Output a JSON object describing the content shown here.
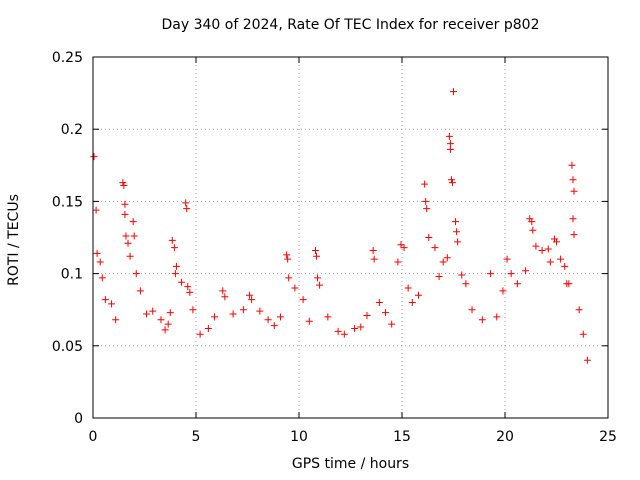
{
  "chart_data": {
    "type": "scatter",
    "title": "Day 340 of 2024, Rate Of TEC Index for receiver p802",
    "xlabel": "GPS time / hours",
    "ylabel": "ROTI / TECUs",
    "xlim": [
      0,
      25
    ],
    "ylim": [
      0,
      0.25
    ],
    "xticks": [
      "0",
      "5",
      "10",
      "15",
      "20",
      "25"
    ],
    "yticks": [
      "0",
      "0.05",
      "0.1",
      "0.15",
      "0.2",
      "0.25"
    ],
    "grid": true,
    "marker": "+",
    "color": "#ff0000",
    "series": [
      {
        "name": "",
        "points": [
          [
            0.05,
            0.181
          ],
          [
            0.15,
            0.144
          ],
          [
            0.2,
            0.114
          ],
          [
            0.35,
            0.108
          ],
          [
            0.45,
            0.097
          ],
          [
            0.6,
            0.082
          ],
          [
            0.9,
            0.079
          ],
          [
            1.1,
            0.068
          ],
          [
            1.45,
            0.163
          ],
          [
            1.5,
            0.161
          ],
          [
            1.55,
            0.148
          ],
          [
            1.55,
            0.141
          ],
          [
            1.6,
            0.126
          ],
          [
            1.7,
            0.121
          ],
          [
            1.8,
            0.112
          ],
          [
            1.95,
            0.136
          ],
          [
            2.0,
            0.126
          ],
          [
            2.1,
            0.1
          ],
          [
            2.3,
            0.088
          ],
          [
            2.6,
            0.072
          ],
          [
            2.9,
            0.074
          ],
          [
            3.3,
            0.068
          ],
          [
            3.5,
            0.061
          ],
          [
            3.65,
            0.065
          ],
          [
            3.75,
            0.073
          ],
          [
            3.85,
            0.123
          ],
          [
            3.95,
            0.118
          ],
          [
            4.0,
            0.1
          ],
          [
            4.05,
            0.105
          ],
          [
            4.3,
            0.094
          ],
          [
            4.5,
            0.149
          ],
          [
            4.55,
            0.145
          ],
          [
            4.6,
            0.091
          ],
          [
            4.7,
            0.087
          ],
          [
            4.85,
            0.075
          ],
          [
            5.2,
            0.058
          ],
          [
            5.6,
            0.062
          ],
          [
            5.9,
            0.07
          ],
          [
            6.3,
            0.088
          ],
          [
            6.4,
            0.084
          ],
          [
            6.8,
            0.072
          ],
          [
            7.3,
            0.075
          ],
          [
            7.6,
            0.085
          ],
          [
            7.7,
            0.082
          ],
          [
            8.1,
            0.074
          ],
          [
            8.5,
            0.068
          ],
          [
            8.8,
            0.064
          ],
          [
            9.1,
            0.07
          ],
          [
            9.4,
            0.113
          ],
          [
            9.45,
            0.11
          ],
          [
            9.5,
            0.097
          ],
          [
            9.8,
            0.09
          ],
          [
            10.2,
            0.082
          ],
          [
            10.5,
            0.067
          ],
          [
            10.8,
            0.116
          ],
          [
            10.85,
            0.112
          ],
          [
            10.9,
            0.097
          ],
          [
            11.0,
            0.092
          ],
          [
            11.4,
            0.07
          ],
          [
            11.9,
            0.06
          ],
          [
            12.2,
            0.058
          ],
          [
            12.7,
            0.062
          ],
          [
            13.0,
            0.063
          ],
          [
            13.3,
            0.071
          ],
          [
            13.6,
            0.116
          ],
          [
            13.65,
            0.11
          ],
          [
            13.9,
            0.08
          ],
          [
            14.2,
            0.073
          ],
          [
            14.5,
            0.065
          ],
          [
            14.8,
            0.108
          ],
          [
            14.95,
            0.12
          ],
          [
            15.1,
            0.118
          ],
          [
            15.3,
            0.09
          ],
          [
            15.5,
            0.08
          ],
          [
            15.8,
            0.085
          ],
          [
            16.1,
            0.162
          ],
          [
            16.15,
            0.15
          ],
          [
            16.2,
            0.145
          ],
          [
            16.3,
            0.125
          ],
          [
            16.6,
            0.118
          ],
          [
            16.8,
            0.098
          ],
          [
            17.0,
            0.108
          ],
          [
            17.2,
            0.111
          ],
          [
            17.3,
            0.195
          ],
          [
            17.35,
            0.19
          ],
          [
            17.35,
            0.186
          ],
          [
            17.4,
            0.165
          ],
          [
            17.45,
            0.163
          ],
          [
            17.5,
            0.226
          ],
          [
            17.6,
            0.136
          ],
          [
            17.65,
            0.129
          ],
          [
            17.7,
            0.122
          ],
          [
            17.9,
            0.099
          ],
          [
            18.1,
            0.093
          ],
          [
            18.4,
            0.075
          ],
          [
            18.9,
            0.068
          ],
          [
            19.3,
            0.1
          ],
          [
            19.6,
            0.07
          ],
          [
            19.9,
            0.088
          ],
          [
            20.1,
            0.11
          ],
          [
            20.3,
            0.1
          ],
          [
            20.6,
            0.093
          ],
          [
            21.0,
            0.102
          ],
          [
            21.2,
            0.138
          ],
          [
            21.3,
            0.136
          ],
          [
            21.35,
            0.13
          ],
          [
            21.5,
            0.119
          ],
          [
            21.8,
            0.116
          ],
          [
            22.1,
            0.117
          ],
          [
            22.2,
            0.108
          ],
          [
            22.4,
            0.124
          ],
          [
            22.5,
            0.122
          ],
          [
            22.7,
            0.11
          ],
          [
            22.9,
            0.105
          ],
          [
            23.0,
            0.093
          ],
          [
            23.1,
            0.093
          ],
          [
            23.25,
            0.175
          ],
          [
            23.3,
            0.165
          ],
          [
            23.35,
            0.157
          ],
          [
            23.3,
            0.138
          ],
          [
            23.35,
            0.127
          ],
          [
            23.6,
            0.075
          ],
          [
            23.8,
            0.058
          ],
          [
            24.0,
            0.04
          ]
        ]
      }
    ]
  }
}
